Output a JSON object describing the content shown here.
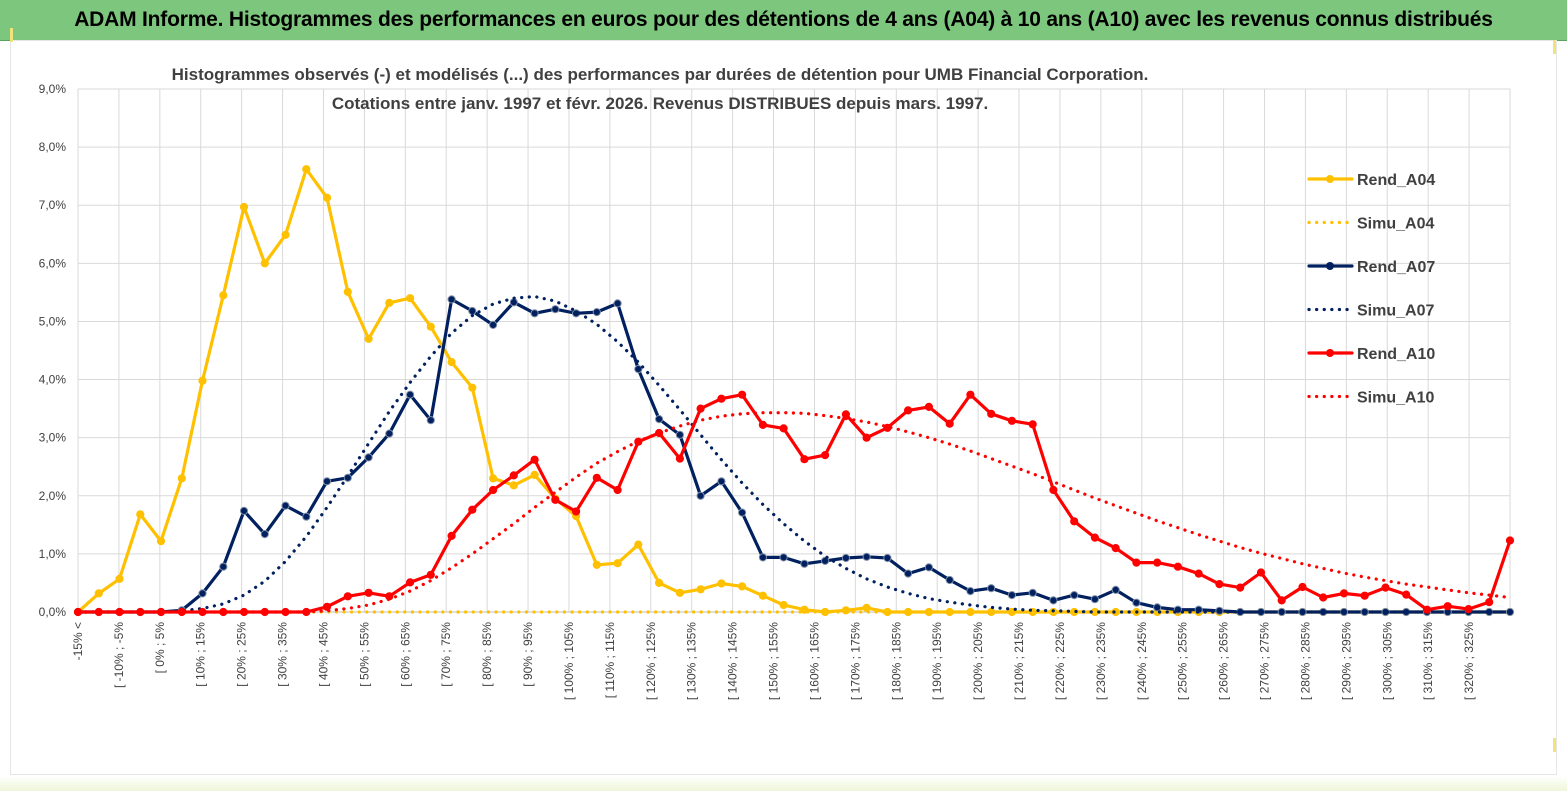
{
  "header": {
    "title": "ADAM Informe. Histogrammes des performances en euros pour des détentions de 4 ans (A04) à 10 ans (A10) avec les revenus connus distribués"
  },
  "chart_data": {
    "type": "line",
    "title_line1": "Histogrammes observés (-) et modélisés (...)  des performances par durées de détention pour UMB Financial Corporation.",
    "title_line2": "Cotations entre janv. 1997 et févr. 2026. Revenus DISTRIBUES depuis mars. 1997.",
    "ylim": [
      0,
      9
    ],
    "yticks": [
      "0,0%",
      "1,0%",
      "2,0%",
      "3,0%",
      "4,0%",
      "5,0%",
      "6,0%",
      "7,0%",
      "8,0%",
      "9,0%"
    ],
    "xtick_labels": [
      "-15% <",
      "[ -10% ; -5%",
      "[ 0% ; 5%",
      "[ 10% ; 15%",
      "[ 20% ; 25%",
      "[ 30% ; 35%",
      "[ 40% ; 45%",
      "[ 50% ; 55%",
      "[ 60% ; 65%",
      "[ 70% ; 75%",
      "[ 80% ; 85%",
      "[ 90% ; 95%",
      "[ 100% ; 105%",
      "[ 110% ; 115%",
      "[ 120% ; 125%",
      "[ 130% ; 135%",
      "[ 140% ; 145%",
      "[ 150% ; 155%",
      "[ 160% ; 165%",
      "[ 170% ; 175%",
      "[ 180% ; 185%",
      "[ 190% ; 195%",
      "[ 200% ; 205%",
      "[ 210% ; 215%",
      "[ 220% ; 225%",
      "[ 230% ; 235%",
      "[ 240% ; 245%",
      "[ 250% ; 255%",
      "[ 260% ; 265%",
      "[ 270% ; 275%",
      "[ 280% ; 285%",
      "[ 290% ; 295%",
      "[ 300% ; 305%",
      "[ 310% ; 315%",
      "[ 320% ; 325%"
    ],
    "series": [
      {
        "name": "Rend_A04",
        "color": "#ffc000",
        "style": "solid",
        "markers": true,
        "values": [
          0,
          0.32,
          0.57,
          1.68,
          1.22,
          2.3,
          3.98,
          5.45,
          6.97,
          6.0,
          6.49,
          7.62,
          7.13,
          5.51,
          4.7,
          5.32,
          5.4,
          4.91,
          4.3,
          3.86,
          2.3,
          2.18,
          2.36,
          1.95,
          1.65,
          0.81,
          0.84,
          1.16,
          0.5,
          0.33,
          0.39,
          0.49,
          0.44,
          0.28,
          0.12,
          0.04,
          0.0,
          0.03,
          0.07,
          0.0,
          0.0,
          0.0,
          0.0,
          0.0,
          0.0,
          0.0,
          0.0,
          0.0,
          0.0,
          0.0,
          0.0,
          0.0,
          0.0,
          0.0,
          0.0,
          0.0,
          0.0,
          0.0,
          0.0,
          0.0,
          0.0,
          0.0,
          0.0,
          0.0,
          0.0,
          0.0,
          0.0,
          0.0,
          0.0,
          0.0
        ]
      },
      {
        "name": "Simu_A04",
        "color": "#ffc000",
        "style": "dotted",
        "markers": false,
        "values": [
          0,
          0,
          0,
          0,
          0,
          0,
          0,
          0,
          0,
          0,
          0,
          0,
          0,
          0,
          0,
          0,
          0,
          0,
          0,
          0,
          0,
          0,
          0,
          0,
          0,
          0,
          0,
          0,
          0,
          0,
          0,
          0,
          0,
          0,
          0,
          0,
          0,
          0,
          0,
          0,
          0,
          0,
          0,
          0,
          0,
          0,
          0,
          0,
          0,
          0,
          0,
          0,
          0,
          0,
          0,
          0,
          0,
          0,
          0,
          0,
          0,
          0,
          0,
          0,
          0,
          0,
          0,
          0,
          0,
          0
        ]
      },
      {
        "name": "Rend_A07",
        "color": "#002060",
        "style": "solid",
        "markers": true,
        "values": [
          0,
          0,
          0,
          0,
          0,
          0.03,
          0.32,
          0.78,
          1.74,
          1.34,
          1.83,
          1.64,
          2.25,
          2.31,
          2.66,
          3.07,
          3.74,
          3.3,
          5.38,
          5.18,
          4.94,
          5.33,
          5.14,
          5.21,
          5.14,
          5.16,
          5.31,
          4.18,
          3.32,
          3.05,
          2.0,
          2.25,
          1.71,
          0.94,
          0.94,
          0.83,
          0.88,
          0.93,
          0.95,
          0.93,
          0.66,
          0.77,
          0.55,
          0.36,
          0.41,
          0.29,
          0.33,
          0.2,
          0.29,
          0.22,
          0.38,
          0.16,
          0.08,
          0.04,
          0.04,
          0.02,
          0,
          0,
          0,
          0,
          0,
          0,
          0,
          0,
          0,
          0,
          0,
          0,
          0,
          0
        ]
      },
      {
        "name": "Simu_A07",
        "color": "#002060",
        "style": "dotted",
        "markers": false,
        "values": [
          0,
          0,
          0,
          0,
          0,
          0.02,
          0.06,
          0.14,
          0.29,
          0.53,
          0.87,
          1.3,
          1.8,
          2.34,
          2.9,
          3.45,
          3.95,
          4.4,
          4.8,
          5.1,
          5.3,
          5.4,
          5.43,
          5.35,
          5.18,
          4.95,
          4.65,
          4.3,
          3.9,
          3.48,
          3.05,
          2.62,
          2.22,
          1.85,
          1.52,
          1.22,
          0.96,
          0.75,
          0.57,
          0.43,
          0.32,
          0.23,
          0.17,
          0.12,
          0.08,
          0.05,
          0.03,
          0.02,
          0.01,
          0,
          0,
          0,
          0,
          0,
          0,
          0,
          0,
          0,
          0,
          0,
          0,
          0,
          0,
          0,
          0,
          0,
          0,
          0,
          0,
          0
        ]
      },
      {
        "name": "Rend_A10",
        "color": "#ff0000",
        "style": "solid",
        "markers": true,
        "values": [
          0,
          0,
          0,
          0,
          0,
          0,
          0,
          0,
          0,
          0,
          0,
          0,
          0.09,
          0.27,
          0.33,
          0.27,
          0.51,
          0.64,
          1.31,
          1.76,
          2.1,
          2.35,
          2.62,
          1.93,
          1.73,
          2.31,
          2.1,
          2.93,
          3.08,
          2.64,
          3.5,
          3.67,
          3.74,
          3.22,
          3.16,
          2.63,
          2.7,
          3.4,
          3.0,
          3.17,
          3.47,
          3.53,
          3.24,
          3.74,
          3.41,
          3.29,
          3.23,
          2.1,
          1.56,
          1.28,
          1.1,
          0.85,
          0.85,
          0.78,
          0.66,
          0.48,
          0.42,
          0.68,
          0.2,
          0.43,
          0.25,
          0.32,
          0.28,
          0.42,
          0.3,
          0.04,
          0.1,
          0.05,
          0.17,
          1.23
        ]
      },
      {
        "name": "Simu_A10",
        "color": "#ff0000",
        "style": "dotted",
        "markers": false,
        "values": [
          0,
          0,
          0,
          0,
          0,
          0,
          0,
          0,
          0,
          0,
          0,
          0,
          0.02,
          0.06,
          0.12,
          0.22,
          0.36,
          0.54,
          0.76,
          1.0,
          1.26,
          1.52,
          1.8,
          2.06,
          2.32,
          2.56,
          2.76,
          2.94,
          3.08,
          3.2,
          3.3,
          3.37,
          3.41,
          3.43,
          3.43,
          3.42,
          3.38,
          3.33,
          3.27,
          3.19,
          3.1,
          3.0,
          2.89,
          2.77,
          2.64,
          2.51,
          2.38,
          2.24,
          2.1,
          1.96,
          1.83,
          1.7,
          1.57,
          1.45,
          1.33,
          1.22,
          1.11,
          1.01,
          0.92,
          0.83,
          0.75,
          0.67,
          0.6,
          0.54,
          0.48,
          0.43,
          0.38,
          0.33,
          0.29,
          0.25
        ]
      }
    ]
  }
}
